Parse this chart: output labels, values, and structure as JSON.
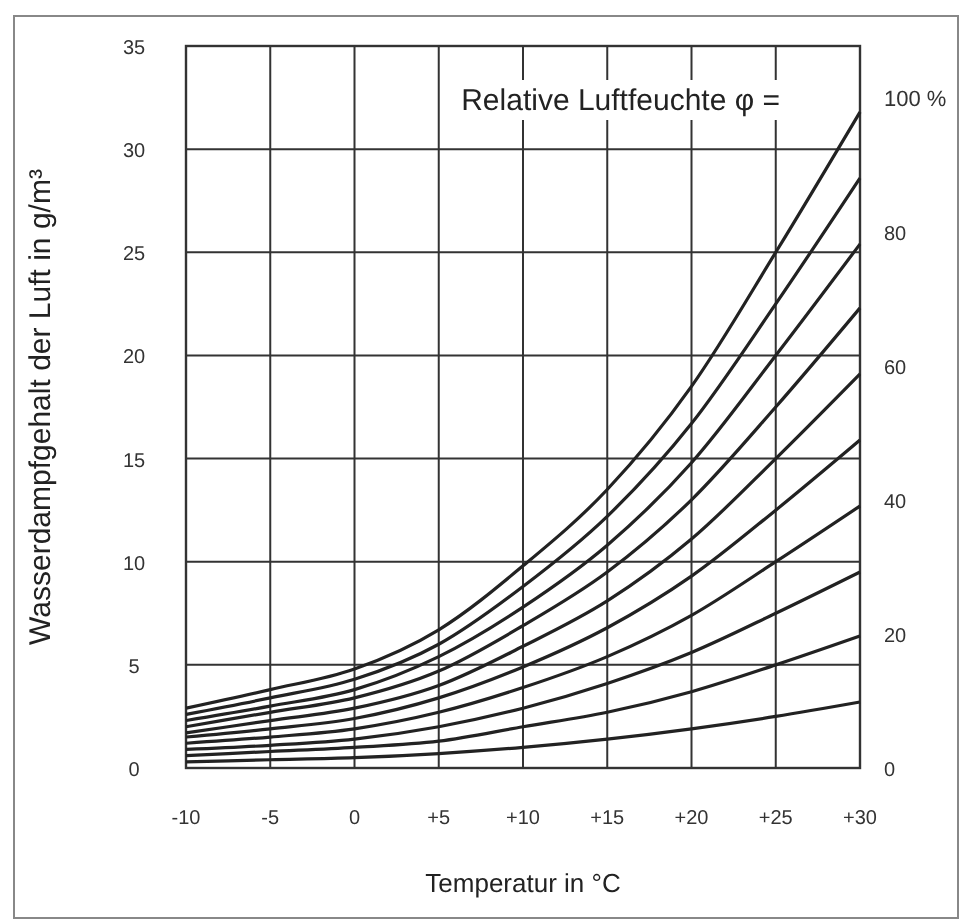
{
  "chart_data": {
    "type": "line",
    "xlabel": "Temperatur in °C",
    "ylabel": "Wasserdampfgehalt der Luft in g/m³",
    "annotations": [
      "Relative Luftfeuchte  φ ="
    ],
    "x": [
      -10,
      -5,
      0,
      5,
      10,
      15,
      20,
      25,
      30
    ],
    "xlim": [
      -10,
      30
    ],
    "xticks": [
      -10,
      -5,
      0,
      {
        "value": 5,
        "label": "+5"
      },
      {
        "value": 10,
        "label": "+10"
      },
      {
        "value": 15,
        "label": "+15"
      },
      {
        "value": 20,
        "label": "+20"
      },
      {
        "value": 25,
        "label": "+25"
      },
      {
        "value": 30,
        "label": "+30"
      }
    ],
    "ylim": [
      0,
      35
    ],
    "yticks": [
      0,
      5,
      10,
      15,
      20,
      25,
      30,
      35
    ],
    "y2lim": [
      0,
      107.7
    ],
    "y2ticks": [
      0,
      20,
      40,
      60,
      80,
      {
        "value": 100,
        "label": "100 %"
      }
    ],
    "grid": true,
    "marker": "none",
    "line_style": "solid",
    "series": [
      {
        "color": "#222222",
        "values": [
          2.9,
          3.8,
          4.8,
          6.7,
          9.8,
          13.5,
          18.5,
          25,
          31.8
        ]
      },
      {
        "color": "#222222",
        "values": [
          2.6,
          3.4,
          4.3,
          6.0,
          8.8,
          12.2,
          16.7,
          22.5,
          28.6
        ]
      },
      {
        "color": "#222222",
        "values": [
          2.3,
          3.0,
          3.8,
          5.4,
          7.8,
          10.8,
          14.8,
          20,
          25.4
        ]
      },
      {
        "color": "#222222",
        "values": [
          2.0,
          2.7,
          3.4,
          4.7,
          6.9,
          9.5,
          13.0,
          17.5,
          22.3
        ]
      },
      {
        "color": "#222222",
        "values": [
          1.7,
          2.3,
          2.9,
          4.0,
          5.9,
          8.1,
          11.1,
          15,
          19.1
        ]
      },
      {
        "color": "#222222",
        "values": [
          1.5,
          1.9,
          2.4,
          3.4,
          4.9,
          6.8,
          9.3,
          12.5,
          15.9
        ]
      },
      {
        "color": "#222222",
        "values": [
          1.2,
          1.5,
          1.9,
          2.7,
          3.9,
          5.4,
          7.4,
          10,
          12.7
        ]
      },
      {
        "color": "#222222",
        "values": [
          0.9,
          1.1,
          1.4,
          2.0,
          2.9,
          4.1,
          5.6,
          7.5,
          9.5
        ]
      },
      {
        "color": "#222222",
        "values": [
          0.6,
          0.8,
          1.0,
          1.3,
          2.0,
          2.7,
          3.7,
          5.0,
          6.4
        ]
      },
      {
        "color": "#222222",
        "values": [
          0.3,
          0.4,
          0.5,
          0.7,
          1.0,
          1.4,
          1.9,
          2.5,
          3.2
        ]
      }
    ]
  }
}
